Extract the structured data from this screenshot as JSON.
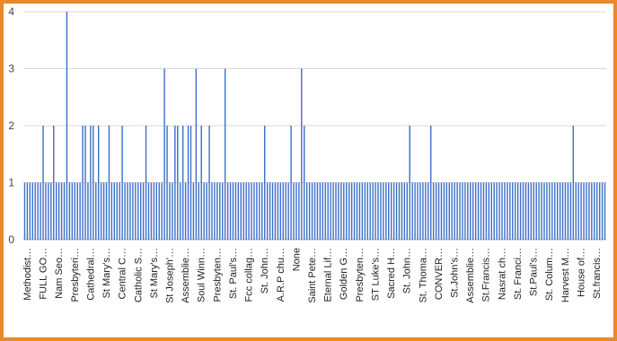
{
  "chart_data": {
    "type": "bar",
    "title": "",
    "xlabel": "",
    "ylabel": "",
    "ylim": [
      0,
      4
    ],
    "yticks": [
      "0",
      "1",
      "2",
      "3",
      "4"
    ],
    "grid": true,
    "legend": "none",
    "bar_color": "#3c6fc9",
    "visible_categories": [
      "Methodist…",
      "FULL GO…",
      "Nam Seo…",
      "Presbyteri…",
      "Cathedral…",
      "St Mary's…",
      "Central C…",
      "Catholic S…",
      "St Mary's…",
      "St Joseph'…",
      "Assemblie…",
      "Soul Winn…",
      "Presbyten…",
      "St. Paul's…",
      "Fcc collag…",
      "St. John…",
      "A.R.P chu…",
      "None",
      "Saint Pete…",
      "Eternal Lif…",
      "Golden G…",
      "Presbyten…",
      "ST Luke's…",
      "Sacred H…",
      "St. John…",
      "St. Thoma…",
      "CONVER…",
      "St.John's…",
      "Assemblie…",
      "St.Francis…",
      "Nasrat  ch…",
      "St. Franci…",
      "St.Paul's…",
      "St. Colum…",
      "Harvest M…",
      "House of…",
      "St.francis…"
    ],
    "values": [
      1,
      1,
      1,
      1,
      1,
      1,
      1,
      2,
      1,
      1,
      1,
      2,
      1,
      1,
      1,
      1,
      4,
      1,
      1,
      1,
      1,
      1,
      2,
      2,
      1,
      2,
      2,
      1,
      2,
      1,
      1,
      1,
      2,
      1,
      1,
      1,
      1,
      2,
      1,
      1,
      1,
      1,
      1,
      1,
      1,
      1,
      2,
      1,
      1,
      1,
      1,
      1,
      1,
      3,
      2,
      1,
      1,
      2,
      2,
      1,
      2,
      1,
      2,
      2,
      1,
      3,
      1,
      2,
      1,
      1,
      2,
      1,
      1,
      1,
      1,
      1,
      3,
      1,
      1,
      1,
      1,
      1,
      1,
      1,
      1,
      1,
      1,
      1,
      1,
      1,
      1,
      2,
      1,
      1,
      1,
      1,
      1,
      1,
      1,
      1,
      1,
      2,
      1,
      1,
      1,
      3,
      2,
      1,
      1,
      1,
      1,
      1,
      1,
      1,
      1,
      1,
      1,
      1,
      1,
      1,
      1,
      1,
      1,
      1,
      1,
      1,
      1,
      1,
      1,
      1,
      1,
      1,
      1,
      1,
      1,
      1,
      1,
      1,
      1,
      1,
      1,
      1,
      1,
      1,
      1,
      1,
      2,
      1,
      1,
      1,
      1,
      1,
      1,
      1,
      2,
      1,
      1,
      1,
      1,
      1,
      1,
      1,
      1,
      1,
      1,
      1,
      1,
      1,
      1,
      1,
      1,
      1,
      1,
      1,
      1,
      1,
      1,
      1,
      1,
      1,
      1,
      1,
      1,
      1,
      1,
      1,
      1,
      1,
      1,
      1,
      1,
      1,
      1,
      1,
      1,
      1,
      1,
      1,
      1,
      1,
      1,
      1,
      1,
      1,
      1,
      1,
      1,
      1,
      2,
      1,
      1,
      1,
      1,
      1,
      1,
      1,
      1,
      1,
      1,
      1,
      1
    ]
  }
}
